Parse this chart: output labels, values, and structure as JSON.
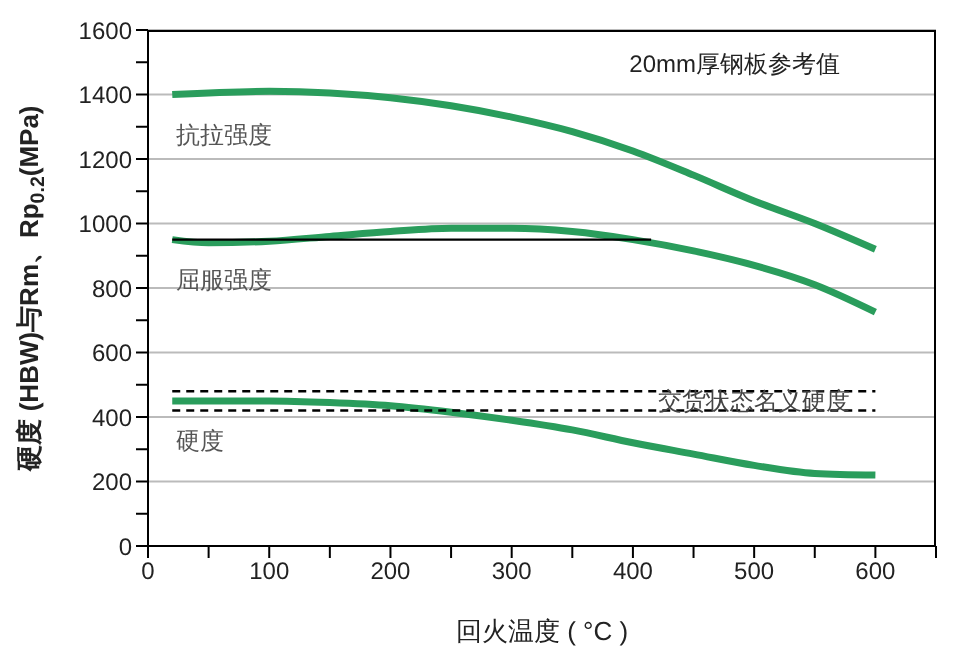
{
  "chart_data": {
    "type": "line",
    "xlabel": "回火温度 ( °C )",
    "ylabel": "硬度 (HBW)与Rm、Rp$_{0.2}$(MPa)",
    "annotations": [
      "20mm厚钢板参考值",
      {
        "text": "交货状态名义硬度",
        "x": 500,
        "y": 450
      }
    ],
    "xlim": [
      0,
      650
    ],
    "xticks": [
      0,
      {
        "value": 50,
        "label": null
      },
      100,
      {
        "value": 150,
        "label": null
      },
      200,
      {
        "value": 250,
        "label": null
      },
      300,
      {
        "value": 350,
        "label": null
      },
      400,
      {
        "value": 450,
        "label": null
      },
      500,
      {
        "value": 550,
        "label": null
      },
      600,
      {
        "value": 650,
        "label": null
      }
    ],
    "ylim": [
      0,
      1600
    ],
    "yticks": [
      0,
      {
        "value": 100,
        "label": null
      },
      200,
      {
        "value": 300,
        "label": null
      },
      400,
      {
        "value": 500,
        "label": null
      },
      600,
      {
        "value": 700,
        "label": null
      },
      800,
      {
        "value": 900,
        "label": null
      },
      1000,
      {
        "value": 1100,
        "label": null
      },
      1200,
      {
        "value": 1300,
        "label": null
      },
      1400,
      {
        "value": 1500,
        "label": null
      },
      1600
    ],
    "grid": "y",
    "legend": false,
    "marker": "none",
    "series": [
      {
        "name": "抗拉强度",
        "color": "#2a9d5c",
        "x": [
          20,
          100,
          150,
          200,
          250,
          300,
          350,
          400,
          450,
          500,
          550,
          600
        ],
        "values": [
          1400,
          1410,
          1405,
          1390,
          1365,
          1330,
          1285,
          1225,
          1150,
          1070,
          1000,
          920
        ]
      },
      {
        "name": "屈服强度",
        "color": "#2a9d5c",
        "x": [
          20,
          50,
          100,
          150,
          200,
          250,
          300,
          350,
          400,
          450,
          500,
          550,
          600
        ],
        "values": [
          950,
          940,
          945,
          960,
          975,
          985,
          985,
          975,
          950,
          915,
          870,
          810,
          725
        ]
      },
      {
        "name": "硬度",
        "color": "#2a9d5c",
        "x": [
          20,
          100,
          150,
          200,
          250,
          300,
          350,
          400,
          450,
          500,
          550,
          600
        ],
        "values": [
          450,
          450,
          445,
          435,
          415,
          390,
          360,
          320,
          285,
          250,
          225,
          220
        ]
      },
      {
        "color": "#000000",
        "x": [
          20,
          415
        ],
        "values": [
          950,
          950
        ]
      },
      {
        "color": "#000000",
        "line_style": "dashed",
        "x": [
          20,
          600
        ],
        "values": [
          480,
          480
        ]
      },
      {
        "color": "#000000",
        "line_style": "dashed",
        "x": [
          20,
          600
        ],
        "values": [
          420,
          420
        ]
      }
    ]
  }
}
